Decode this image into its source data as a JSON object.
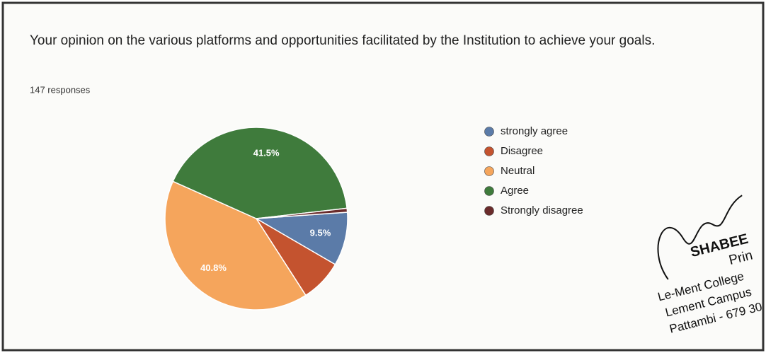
{
  "chart_data": {
    "type": "pie",
    "title": "Your opinion on the various platforms and opportunities facilitated by the Institution to achieve your goals.",
    "subtitle": "147 responses",
    "categories": [
      "strongly agree",
      "Disagree",
      "Neutral",
      "Agree",
      "Strongly disagree"
    ],
    "values": [
      9.5,
      7.5,
      40.8,
      41.5,
      0.7
    ],
    "value_labels": [
      "9.5%",
      null,
      "40.8%",
      "41.5%",
      null
    ],
    "colors": [
      "#5b7ba8",
      "#c4532f",
      "#f5a55c",
      "#3f7b3c",
      "#6a2b2b"
    ],
    "legend": "right"
  },
  "stamp": {
    "lines": [
      "SHABEE",
      "Prin",
      "Le-Ment College",
      "Lement Campus",
      "Pattambi - 679 30"
    ]
  }
}
